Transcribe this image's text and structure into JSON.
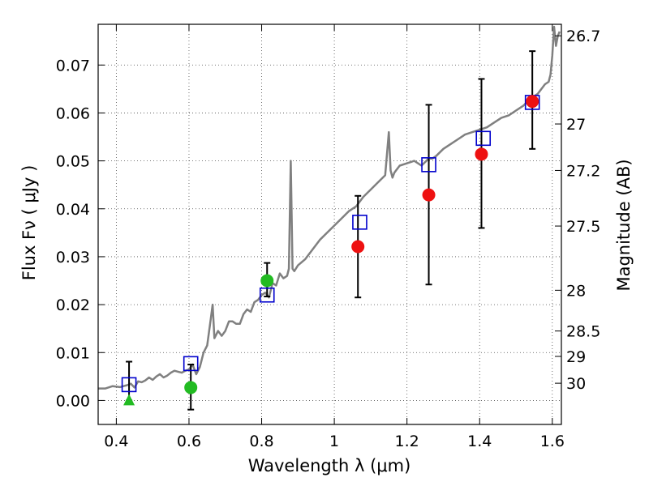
{
  "chart_data": {
    "type": "scatter",
    "xlabel": "Wavelength  λ (μm)",
    "ylabel": "Flux  Fν  ( μJy )",
    "ylabel_right": "Magnitude (AB)",
    "xlim": [
      0.35,
      1.625
    ],
    "ylim": [
      -0.005,
      0.0785
    ],
    "grid": true,
    "x_ticks": [
      0.4,
      0.6,
      0.8,
      1.0,
      1.2,
      1.4,
      1.6
    ],
    "x_tick_labels": [
      "0.4",
      "0.6",
      "0.8",
      "1",
      "1.2",
      "1.4",
      "1.6"
    ],
    "y_ticks": [
      0.0,
      0.01,
      0.02,
      0.03,
      0.04,
      0.05,
      0.06,
      0.07
    ],
    "y_tick_labels": [
      "0.00",
      "0.01",
      "0.02",
      "0.03",
      "0.04",
      "0.05",
      "0.06",
      "0.07"
    ],
    "right_ticks": [
      {
        "label": "26.7",
        "flux": 0.0761
      },
      {
        "label": "27",
        "flux": 0.0577
      },
      {
        "label": "27.2",
        "flux": 0.048
      },
      {
        "label": "27.5",
        "flux": 0.0364
      },
      {
        "label": "28",
        "flux": 0.023
      },
      {
        "label": "28.5",
        "flux": 0.0145
      },
      {
        "label": "29",
        "flux": 0.0092
      },
      {
        "label": "30",
        "flux": 0.0036
      }
    ],
    "colors": {
      "sed": "#808080",
      "model": "#0000cc",
      "detected": "#ee1111",
      "optical": "#22bb22",
      "errorbar": "#000000"
    },
    "series": [
      {
        "kind": "line",
        "x": [
          0.35,
          0.37,
          0.39,
          0.41,
          0.42,
          0.43,
          0.44,
          0.45,
          0.46,
          0.47,
          0.48,
          0.49,
          0.5,
          0.51,
          0.52,
          0.53,
          0.54,
          0.55,
          0.56,
          0.57,
          0.58,
          0.59,
          0.6,
          0.61,
          0.62,
          0.63,
          0.64,
          0.65,
          0.66,
          0.665,
          0.67,
          0.68,
          0.69,
          0.7,
          0.71,
          0.72,
          0.73,
          0.74,
          0.75,
          0.76,
          0.77,
          0.78,
          0.79,
          0.8,
          0.81,
          0.82,
          0.83,
          0.84,
          0.85,
          0.86,
          0.87,
          0.875,
          0.88,
          0.885,
          0.89,
          0.9,
          0.92,
          0.94,
          0.96,
          0.98,
          1.0,
          1.02,
          1.04,
          1.06,
          1.08,
          1.1,
          1.12,
          1.14,
          1.15,
          1.155,
          1.16,
          1.165,
          1.17,
          1.18,
          1.2,
          1.22,
          1.24,
          1.26,
          1.27,
          1.28,
          1.3,
          1.32,
          1.34,
          1.36,
          1.38,
          1.4,
          1.42,
          1.44,
          1.46,
          1.48,
          1.5,
          1.52,
          1.54,
          1.56,
          1.58,
          1.59,
          1.595,
          1.6,
          1.605,
          1.61,
          1.615,
          1.62
        ],
        "y": [
          0.0025,
          0.0025,
          0.003,
          0.0028,
          0.003,
          0.0032,
          0.0035,
          0.0027,
          0.004,
          0.0038,
          0.0042,
          0.0048,
          0.0043,
          0.005,
          0.0055,
          0.0048,
          0.0052,
          0.0058,
          0.0062,
          0.006,
          0.0058,
          0.0062,
          0.0065,
          0.0075,
          0.0055,
          0.007,
          0.01,
          0.0115,
          0.017,
          0.02,
          0.013,
          0.0145,
          0.0135,
          0.0145,
          0.0165,
          0.0165,
          0.016,
          0.016,
          0.018,
          0.019,
          0.0185,
          0.0205,
          0.021,
          0.022,
          0.0225,
          0.0215,
          0.0245,
          0.024,
          0.0265,
          0.0255,
          0.026,
          0.0275,
          0.05,
          0.0275,
          0.027,
          0.0282,
          0.0295,
          0.0315,
          0.0335,
          0.035,
          0.0365,
          0.038,
          0.0395,
          0.0405,
          0.0425,
          0.044,
          0.0455,
          0.047,
          0.056,
          0.048,
          0.0465,
          0.0475,
          0.048,
          0.049,
          0.0495,
          0.05,
          0.049,
          0.0505,
          0.0505,
          0.051,
          0.0525,
          0.0535,
          0.0545,
          0.0555,
          0.056,
          0.0565,
          0.057,
          0.058,
          0.059,
          0.0595,
          0.0605,
          0.0615,
          0.063,
          0.064,
          0.066,
          0.0665,
          0.068,
          0.072,
          0.078,
          0.074,
          0.076,
          0.077
        ]
      },
      {
        "kind": "model-squares",
        "x": [
          0.435,
          0.605,
          0.815,
          1.07,
          1.26,
          1.41,
          1.545
        ],
        "y": [
          0.0033,
          0.0077,
          0.022,
          0.0372,
          0.0492,
          0.0547,
          0.0622
        ]
      },
      {
        "kind": "detections",
        "x": [
          1.065,
          1.26,
          1.405,
          1.545
        ],
        "y": [
          0.0321,
          0.0429,
          0.0514,
          0.0624
        ],
        "yerr_low": [
          0.0215,
          0.0242,
          0.036,
          0.0525
        ],
        "yerr_high": [
          0.0427,
          0.0617,
          0.0671,
          0.0729
        ]
      },
      {
        "kind": "optical",
        "x": [
          0.605,
          0.815
        ],
        "y": [
          0.0027,
          0.025
        ],
        "yerr_low": [
          -0.0019,
          0.0217
        ],
        "yerr_high": [
          0.0075,
          0.0287
        ]
      },
      {
        "kind": "upper-limit",
        "x": [
          0.435
        ],
        "y": [
          0.0
        ],
        "yerr_low": [
          0.0
        ],
        "yerr_high": [
          0.0081
        ]
      }
    ]
  }
}
